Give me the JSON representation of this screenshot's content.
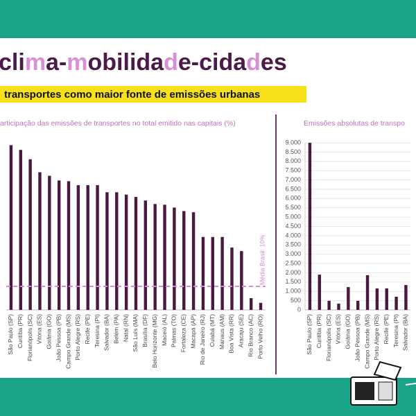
{
  "header": {
    "title": [
      "cli",
      "m",
      "a-",
      "m",
      "obilida",
      "d",
      "e-cida",
      "d",
      "es"
    ],
    "subtitle": "transportes como maior fonte de emissões urbanas"
  },
  "chart_data": [
    {
      "type": "bar",
      "title": "articipação das emissões de transportes no total emitido nas capitais (%)",
      "categories": [
        "São Paulo (SP)",
        "Curitiba (PR)",
        "Florianópolis (SC)",
        "Vitória (ES)",
        "Goiânia (GO)",
        "João Pessoa (PB)",
        "Campo Grande (MS)",
        "Porto Alegre (RS)",
        "Recife (PE)",
        "Teresina (PI)",
        "Salvador (BA)",
        "Belém (PA)",
        "Natal (RN)",
        "São Luís (MA)",
        "Brasília (DF)",
        "Belo Horizonte (MG)",
        "Maceió (AL)",
        "Palmas (TO)",
        "Fortaleza (CE)",
        "Macapá (AP)",
        "Rio de Janeiro (RJ)",
        "Cuiabá (MT)",
        "Manaus (AM)",
        "Boa Vista (RR)",
        "Aracaju (SE)",
        "Rio Branco (AC)",
        "Porto Velho (RO)"
      ],
      "values": [
        70,
        68,
        64,
        58.5,
        57,
        55,
        54.7,
        53,
        53,
        53,
        50,
        50,
        49,
        48,
        46.5,
        45,
        44.7,
        43.5,
        42,
        41.5,
        31,
        31,
        31,
        26.5,
        25,
        5,
        3
      ],
      "color": "#4a1942",
      "ylim": [
        0,
        71
      ],
      "reference": {
        "value": 10,
        "label": "Média Brasil: 10%",
        "color": "#d48ad4"
      }
    },
    {
      "type": "bar",
      "title": "Emissões absolutas de transpo",
      "categories": [
        "São Paulo (SP)",
        "Curitiba (PR)",
        "Florianópolis (SC)",
        "Vitória (ES)",
        "Goiânia (GO)",
        "João Pessoa (PB)",
        "Campo Grande (MS)",
        "Porto Alegre (RS)",
        "Recife (PE)",
        "Teresina (PI)",
        "Salvador (BA)"
      ],
      "values": [
        9000,
        1900,
        490,
        340,
        1230,
        490,
        1870,
        1160,
        1160,
        710,
        1340
      ],
      "color": "#4a1942",
      "ylim": [
        0,
        9000
      ],
      "yticks": [
        {
          "value": 9000,
          "label": "9.000"
        },
        {
          "value": 8500,
          "label": "8.500"
        },
        {
          "value": 8000,
          "label": "8.000"
        },
        {
          "value": 7500,
          "label": "7.500"
        },
        {
          "value": 7000,
          "label": "7.000"
        },
        {
          "value": 6500,
          "label": "6.500"
        },
        {
          "value": 6000,
          "label": "6.000"
        },
        {
          "value": 5500,
          "label": "5.500"
        },
        {
          "value": 5000,
          "label": "5.000"
        },
        {
          "value": 4500,
          "label": "4.500"
        },
        {
          "value": 4000,
          "label": "4.000"
        },
        {
          "value": 3500,
          "label": "3.500"
        },
        {
          "value": 3000,
          "label": "3.000"
        },
        {
          "value": 2500,
          "label": "2.500"
        },
        {
          "value": 2000,
          "label": "2.000"
        },
        {
          "value": 1500,
          "label": "1.500"
        },
        {
          "value": 1000,
          "label": "1.000"
        },
        500,
        0
      ],
      "grid": true
    }
  ]
}
